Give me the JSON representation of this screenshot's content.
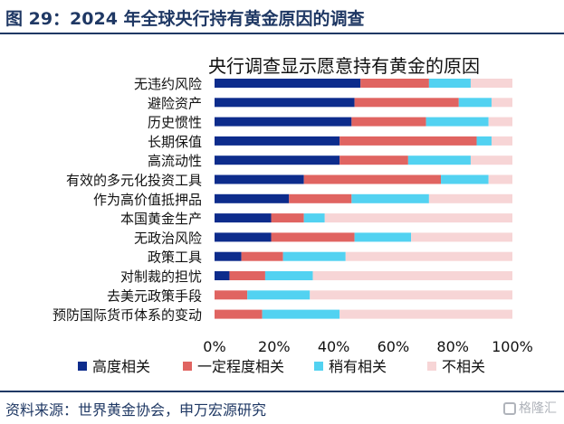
{
  "figure": {
    "title": "图 29：2024 年全球央行持有黄金原因的调查",
    "source": "资料来源：世界黄金协会，申万宏源研究",
    "watermark": "格隆汇"
  },
  "chart_data": {
    "type": "bar",
    "orientation": "horizontal",
    "stacked": true,
    "title": "央行调查显示愿意持有黄金的原因",
    "categories": [
      "无违约风险",
      "避险资产",
      "历史惯性",
      "长期保值",
      "高流动性",
      "有效的多元化投资工具",
      "作为高价值抵押品",
      "本国黄金生产",
      "无政治风险",
      "政策工具",
      "对制裁的担忧",
      "去美元政策手段",
      "预防国际货币体系的变动"
    ],
    "series": [
      {
        "name": "高度相关",
        "color": "#0d2c8c",
        "values": [
          49,
          47,
          46,
          42,
          42,
          30,
          25,
          19,
          19,
          9,
          5,
          0,
          0
        ]
      },
      {
        "name": "一定程度相关",
        "color": "#e06461",
        "values": [
          23,
          35,
          25,
          46,
          23,
          46,
          21,
          11,
          28,
          14,
          12,
          11,
          16
        ]
      },
      {
        "name": "稍有相关",
        "color": "#52d2f1",
        "values": [
          14,
          11,
          21,
          5,
          21,
          16,
          26,
          7,
          19,
          21,
          16,
          21,
          26
        ]
      },
      {
        "name": "不相关",
        "color": "#f7d5d6",
        "values": [
          14,
          7,
          8,
          7,
          14,
          8,
          28,
          63,
          34,
          56,
          67,
          68,
          58
        ]
      }
    ],
    "xlim": [
      0,
      100
    ],
    "x_ticks": [
      "0%",
      "20%",
      "40%",
      "60%",
      "80%",
      "100%"
    ],
    "grid": false,
    "legend_position": "bottom"
  }
}
